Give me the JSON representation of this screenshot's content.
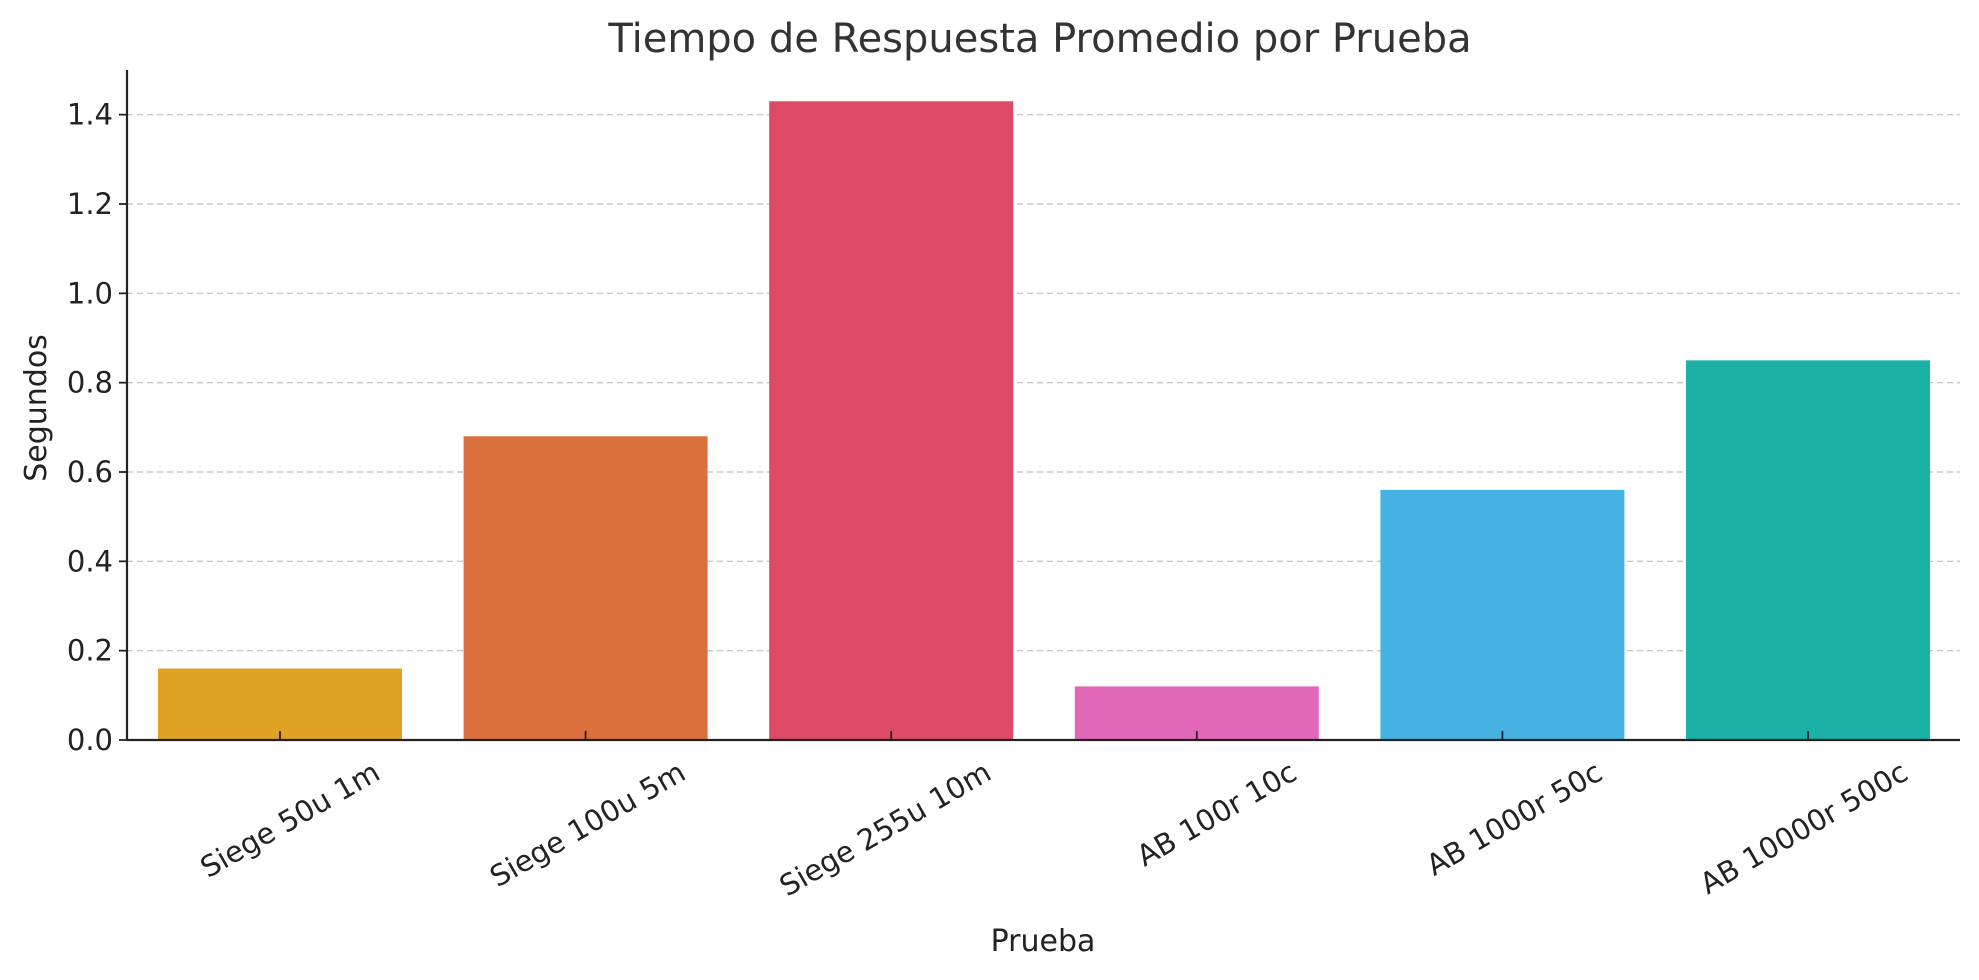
{
  "chart_data": {
    "type": "bar",
    "title": "Tiempo de Respuesta Promedio por Prueba",
    "xlabel": "Prueba",
    "ylabel": "Segundos",
    "categories": [
      "Siege 50u 1m",
      "Siege 100u 5m",
      "Siege 255u 10m",
      "AB 100r 10c",
      "AB 1000r 50c",
      "AB 10000r 500c"
    ],
    "values": [
      0.16,
      0.68,
      1.43,
      0.12,
      0.56,
      0.85
    ],
    "colors": [
      "#E0A222",
      "#DA703B",
      "#DC4A66",
      "#E168B8",
      "#45B2E2",
      "#1CB1A7"
    ],
    "ylim": [
      0,
      1.5
    ],
    "yticks": [
      "0.0",
      "0.2",
      "0.4",
      "0.6",
      "0.8",
      "1.0",
      "1.2",
      "1.4"
    ],
    "ytick_values": [
      0,
      0.2,
      0.4,
      0.6,
      0.8,
      1.0,
      1.2,
      1.4
    ],
    "grid": "horizontal dashed",
    "legend": "none"
  }
}
